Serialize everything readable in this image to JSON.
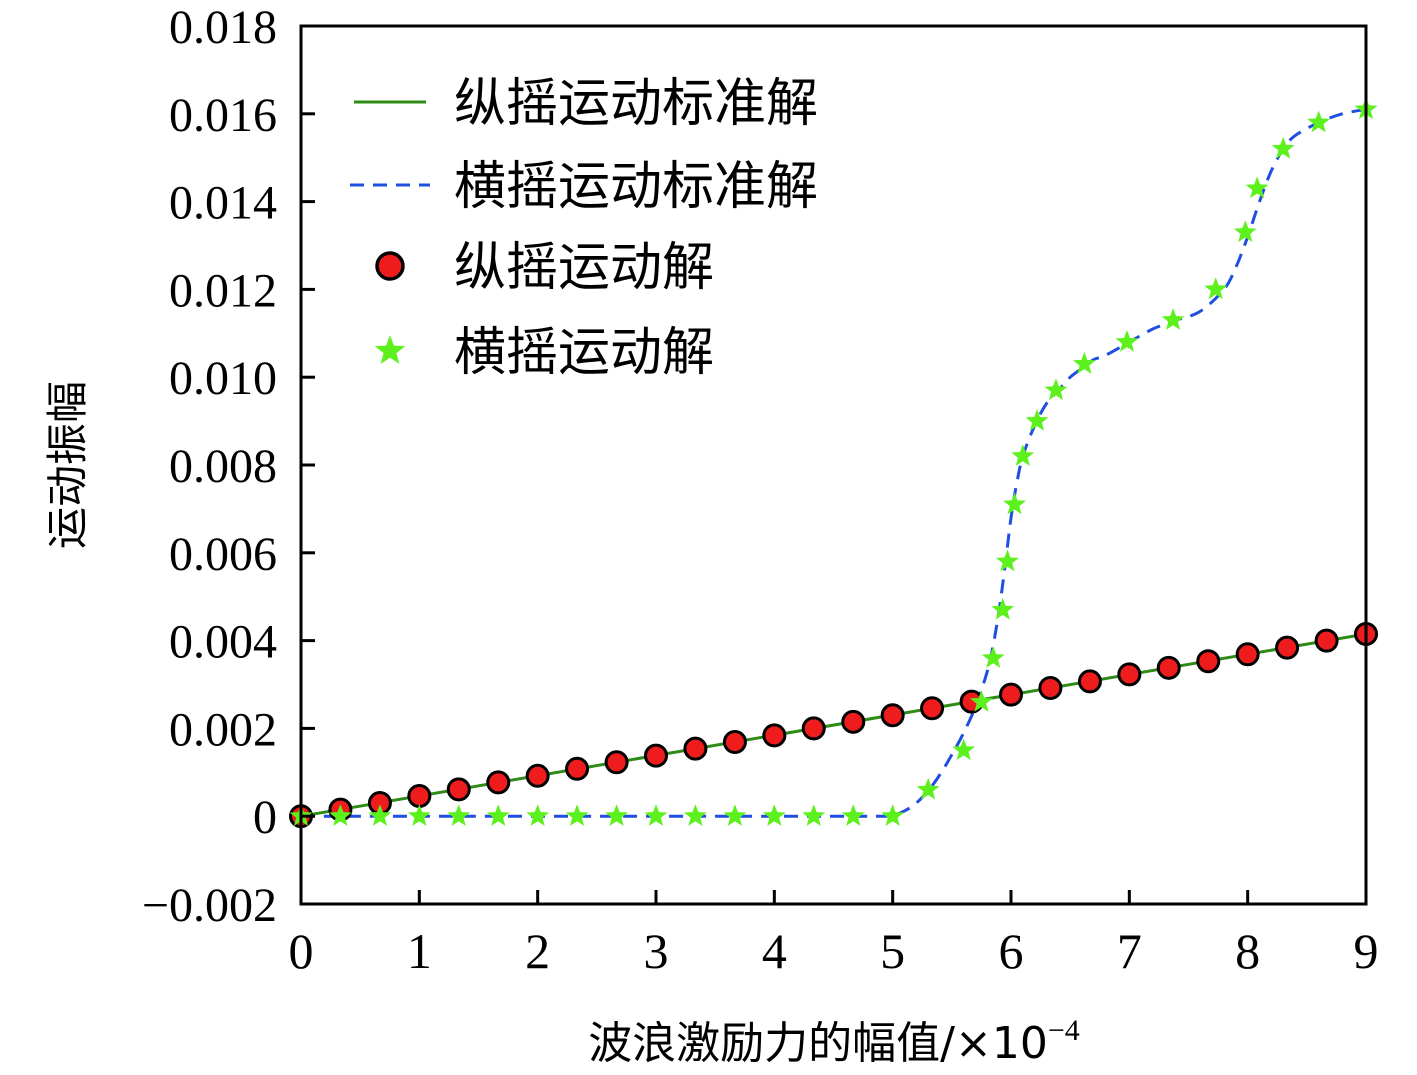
{
  "chart_data": {
    "type": "line",
    "title": "",
    "xlabel": "波浪激励力的幅值/×10",
    "xlabel_exponent": "−4",
    "ylabel": "运动振幅",
    "xlim": [
      0,
      9
    ],
    "ylim": [
      -0.002,
      0.018
    ],
    "grid": false,
    "legend_position": "top-left",
    "x_ticks": [
      0,
      1,
      2,
      3,
      4,
      5,
      6,
      7,
      8,
      9
    ],
    "x_tick_labels": [
      "0",
      "1",
      "2",
      "3",
      "4",
      "5",
      "6",
      "7",
      "8",
      "9"
    ],
    "y_ticks": [
      -0.002,
      0,
      0.002,
      0.004,
      0.006,
      0.008,
      0.01,
      0.012,
      0.014,
      0.016,
      0.018
    ],
    "y_tick_labels": [
      "−0.002",
      "0",
      "0.002",
      "0.004",
      "0.006",
      "0.008",
      "0.010",
      "0.012",
      "0.014",
      "0.016",
      "0.018"
    ],
    "series": [
      {
        "name": "纵摇运动标准解",
        "style": "solid-line",
        "color": "#2e8b16",
        "x": [
          0,
          9
        ],
        "y": [
          0,
          0.00415
        ]
      },
      {
        "name": "横摇运动标准解",
        "style": "dashed-line",
        "color": "#1f4fe0",
        "x": [
          0,
          4.0,
          4.9,
          5.0,
          5.1,
          5.2,
          5.3,
          5.4,
          5.5,
          5.6,
          5.7,
          5.8,
          5.85,
          5.9,
          5.95,
          6.0,
          6.05,
          6.1,
          6.2,
          6.3,
          6.4,
          6.5,
          6.6,
          6.7,
          6.8,
          7.0,
          7.2,
          7.4,
          7.6,
          7.8,
          7.9,
          8.0,
          8.1,
          8.2,
          8.3,
          8.4,
          8.6,
          8.8,
          9.0
        ],
        "y": [
          0,
          0,
          0,
          2e-05,
          0.00012,
          0.0003,
          0.00058,
          0.00095,
          0.0014,
          0.0019,
          0.0025,
          0.0033,
          0.0039,
          0.0047,
          0.0057,
          0.0068,
          0.0076,
          0.0082,
          0.0089,
          0.0094,
          0.0097,
          0.01,
          0.0102,
          0.0104,
          0.0105,
          0.0108,
          0.0111,
          0.0113,
          0.0115,
          0.012,
          0.0125,
          0.0132,
          0.014,
          0.0147,
          0.0152,
          0.0155,
          0.0158,
          0.016,
          0.0161
        ]
      },
      {
        "name": "纵摇运动解",
        "style": "circle-marker",
        "color": "#ee1c1c",
        "x": [
          0,
          0.333,
          0.667,
          1.0,
          1.333,
          1.667,
          2.0,
          2.333,
          2.667,
          3.0,
          3.333,
          3.667,
          4.0,
          4.333,
          4.667,
          5.0,
          5.333,
          5.667,
          6.0,
          6.333,
          6.667,
          7.0,
          7.333,
          7.667,
          8.0,
          8.333,
          8.667,
          9.0
        ],
        "y": [
          0,
          0.00015,
          0.0003,
          0.00046,
          0.00061,
          0.00077,
          0.00092,
          0.00108,
          0.00123,
          0.00138,
          0.00154,
          0.00169,
          0.00184,
          0.002,
          0.00215,
          0.0023,
          0.00246,
          0.00261,
          0.00277,
          0.00292,
          0.00307,
          0.00323,
          0.00338,
          0.00353,
          0.00369,
          0.00384,
          0.004,
          0.00415
        ]
      },
      {
        "name": "横摇运动解",
        "style": "star-marker",
        "color": "#5cf01c",
        "x": [
          0,
          0.333,
          0.667,
          1.0,
          1.333,
          1.667,
          2.0,
          2.333,
          2.667,
          3.0,
          3.333,
          3.667,
          4.0,
          4.333,
          4.667,
          5.0,
          5.3,
          5.6,
          5.75,
          5.85,
          5.93,
          5.97,
          6.03,
          6.1,
          6.22,
          6.38,
          6.62,
          6.98,
          7.37,
          7.73,
          7.98,
          8.08,
          8.3,
          8.6,
          9.0
        ],
        "y": [
          0,
          0,
          0,
          0,
          0,
          0,
          0,
          0,
          0,
          0,
          0,
          0,
          0,
          0,
          0,
          0,
          0.0006,
          0.0015,
          0.0026,
          0.0036,
          0.0047,
          0.0058,
          0.0071,
          0.0082,
          0.009,
          0.0097,
          0.0103,
          0.0108,
          0.0113,
          0.012,
          0.0133,
          0.0143,
          0.0152,
          0.0158,
          0.0161
        ]
      }
    ]
  }
}
